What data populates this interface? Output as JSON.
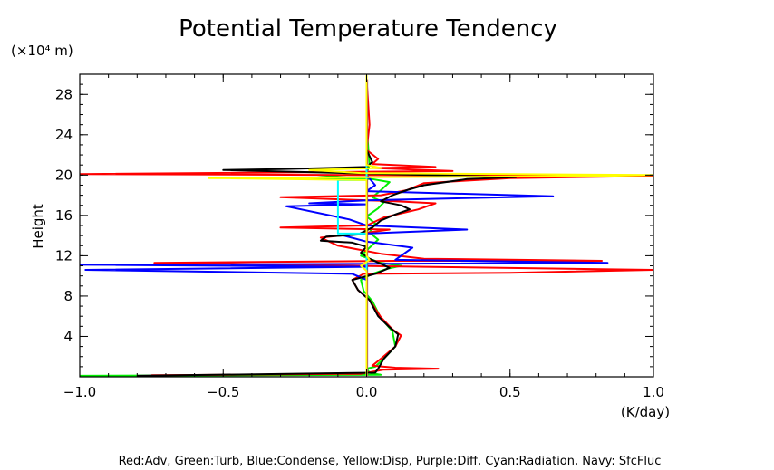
{
  "chart_data": {
    "type": "line",
    "title": "Potential Temperature Tendency",
    "ylabel": "Height",
    "yunit": "(×10⁴ m)",
    "xunit": "(K/day)",
    "legend_text": "Red:Adv, Green:Turb, Blue:Condense, Yellow:Disp, Purple:Diff, Cyan:Radiation, Navy: SfcFluc",
    "xlim": [
      -1.0,
      1.0
    ],
    "ylim": [
      0,
      30
    ],
    "x_ticks": [
      {
        "v": -1.0,
        "label": "−1.0"
      },
      {
        "v": -0.5,
        "label": "−0.5"
      },
      {
        "v": 0.0,
        "label": "0.0"
      },
      {
        "v": 0.5,
        "label": "0.5"
      },
      {
        "v": 1.0,
        "label": "1.0"
      }
    ],
    "y_ticks": [
      {
        "v": 4,
        "label": "4"
      },
      {
        "v": 8,
        "label": "8"
      },
      {
        "v": 12,
        "label": "12"
      },
      {
        "v": 16,
        "label": "16"
      },
      {
        "v": 20,
        "label": "20"
      },
      {
        "v": 24,
        "label": "24"
      },
      {
        "v": 28,
        "label": "28"
      }
    ],
    "grid": false,
    "series": [
      {
        "key": "turb",
        "color": "#00ee00",
        "points": [
          [
            -1.0,
            0.1
          ],
          [
            0.05,
            0.2
          ],
          [
            0.01,
            0.4
          ],
          [
            0.0,
            0.8
          ],
          [
            0.03,
            1.0
          ],
          [
            0.06,
            1.8
          ],
          [
            0.1,
            3
          ],
          [
            0.09,
            4.5
          ],
          [
            0.05,
            5.8
          ],
          [
            0.02,
            7.5
          ],
          [
            -0.01,
            8.5
          ],
          [
            -0.02,
            9.6
          ],
          [
            0.02,
            10.2
          ],
          [
            0.07,
            10.7
          ],
          [
            0.12,
            11.0
          ],
          [
            0.05,
            11.3
          ],
          [
            -0.02,
            12.0
          ],
          [
            0.01,
            12.8
          ],
          [
            0.04,
            13.6
          ],
          [
            0.01,
            14.3
          ],
          [
            0.03,
            15.2
          ],
          [
            0.0,
            15.9
          ],
          [
            0.04,
            16.7
          ],
          [
            0.06,
            17.3
          ],
          [
            0.02,
            17.8
          ],
          [
            0.05,
            18.5
          ],
          [
            0.08,
            19.3
          ],
          [
            0.02,
            19.6
          ],
          [
            -0.2,
            19.7
          ],
          [
            0.0,
            20.2
          ],
          [
            0.01,
            21
          ],
          [
            0.0,
            25
          ],
          [
            0.0,
            29.5
          ]
        ]
      },
      {
        "key": "adv",
        "color": "#ff0000",
        "points": [
          [
            -0.75,
            0.15
          ],
          [
            -0.02,
            0.3
          ],
          [
            0.06,
            0.7
          ],
          [
            0.25,
            0.8
          ],
          [
            0.1,
            0.9
          ],
          [
            0.02,
            1.1
          ],
          [
            0.05,
            1.8
          ],
          [
            0.1,
            3
          ],
          [
            0.12,
            4.1
          ],
          [
            0.09,
            4.7
          ],
          [
            0.05,
            5.9
          ],
          [
            0.01,
            7.6
          ],
          [
            -0.03,
            8.6
          ],
          [
            -0.05,
            9.6
          ],
          [
            -0.01,
            10.2
          ],
          [
            0.5,
            10.3
          ],
          [
            1.0,
            10.6
          ],
          [
            0.2,
            10.9
          ],
          [
            -0.74,
            11.3
          ],
          [
            0.1,
            11.5
          ],
          [
            0.82,
            11.5
          ],
          [
            0.2,
            11.7
          ],
          [
            0.05,
            12.2
          ],
          [
            -0.1,
            13.0
          ],
          [
            -0.16,
            13.8
          ],
          [
            -0.02,
            14.2
          ],
          [
            0.08,
            14.6
          ],
          [
            -0.3,
            14.8
          ],
          [
            0.0,
            15.0
          ],
          [
            0.06,
            15.8
          ],
          [
            0.18,
            16.6
          ],
          [
            0.24,
            17.2
          ],
          [
            0.1,
            17.4
          ],
          [
            -0.3,
            17.8
          ],
          [
            0.05,
            18.0
          ],
          [
            0.14,
            18.5
          ],
          [
            0.2,
            19.2
          ],
          [
            0.5,
            19.7
          ],
          [
            1.0,
            19.9
          ],
          [
            -1.0,
            20.1
          ],
          [
            0.3,
            20.4
          ],
          [
            0.02,
            20.7
          ],
          [
            0.24,
            20.8
          ],
          [
            0.02,
            21.1
          ],
          [
            0.04,
            21.6
          ],
          [
            0.0,
            22.5
          ],
          [
            0.01,
            25
          ],
          [
            0.0,
            29.5
          ]
        ]
      },
      {
        "key": "condense",
        "color": "#0000ff",
        "points": [
          [
            0.0,
            0.1
          ],
          [
            0.0,
            9.6
          ],
          [
            -0.05,
            10.2
          ],
          [
            -0.98,
            10.6
          ],
          [
            0.0,
            10.9
          ],
          [
            -1.0,
            11.1
          ],
          [
            0.05,
            11.2
          ],
          [
            0.84,
            11.3
          ],
          [
            0.1,
            11.6
          ],
          [
            0.16,
            12.8
          ],
          [
            0.0,
            13.4
          ],
          [
            -0.08,
            14.0
          ],
          [
            0.0,
            14.2
          ],
          [
            0.35,
            14.6
          ],
          [
            0.0,
            15.0
          ],
          [
            -0.06,
            15.6
          ],
          [
            -0.28,
            16.9
          ],
          [
            0.0,
            17.1
          ],
          [
            -0.2,
            17.2
          ],
          [
            0.0,
            17.5
          ],
          [
            0.65,
            17.9
          ],
          [
            0.0,
            18.4
          ],
          [
            0.03,
            19.0
          ],
          [
            0.0,
            20.0
          ],
          [
            0.0,
            29.5
          ]
        ]
      },
      {
        "key": "sfcfluc",
        "color": "#000080",
        "points": [
          [
            0.0,
            0.1
          ],
          [
            0.0,
            29.5
          ]
        ]
      },
      {
        "key": "diff",
        "color": "#800080",
        "points": [
          [
            0.002,
            0.1
          ],
          [
            0.002,
            29.5
          ]
        ]
      },
      {
        "key": "total",
        "color": "#000000",
        "points": [
          [
            -0.8,
            0.1
          ],
          [
            0.03,
            0.4
          ],
          [
            0.04,
            0.8
          ],
          [
            0.06,
            1.8
          ],
          [
            0.1,
            3
          ],
          [
            0.11,
            4.2
          ],
          [
            0.08,
            4.9
          ],
          [
            0.04,
            6
          ],
          [
            0.01,
            7.6
          ],
          [
            -0.03,
            8.6
          ],
          [
            -0.05,
            9.6
          ],
          [
            0.03,
            10.2
          ],
          [
            0.08,
            10.8
          ],
          [
            0.05,
            11.2
          ],
          [
            0.01,
            11.7
          ],
          [
            -0.02,
            12.3
          ],
          [
            0.0,
            12.9
          ],
          [
            -0.05,
            13.3
          ],
          [
            -0.16,
            13.5
          ],
          [
            -0.14,
            13.9
          ],
          [
            -0.03,
            14.1
          ],
          [
            0.02,
            14.8
          ],
          [
            0.05,
            15.5
          ],
          [
            0.1,
            16.1
          ],
          [
            0.15,
            16.6
          ],
          [
            0.12,
            17.0
          ],
          [
            0.05,
            17.4
          ],
          [
            0.09,
            18.0
          ],
          [
            0.14,
            18.5
          ],
          [
            0.2,
            19.0
          ],
          [
            0.35,
            19.6
          ],
          [
            0.52,
            19.8
          ],
          [
            -0.5,
            20.5
          ],
          [
            -0.3,
            20.6
          ],
          [
            0.0,
            20.8
          ],
          [
            0.02,
            21.3
          ],
          [
            0.0,
            22.5
          ],
          [
            0.0,
            29.5
          ]
        ]
      },
      {
        "key": "radiation",
        "color": "#00ffff",
        "points": [
          [
            0.0,
            0.5
          ],
          [
            0.0,
            14.2
          ],
          [
            -0.1,
            14.2
          ],
          [
            -0.1,
            19.5
          ],
          [
            0.0,
            19.5
          ],
          [
            0.0,
            29.5
          ]
        ]
      },
      {
        "key": "disp",
        "color": "#ffff00",
        "points": [
          [
            0.0,
            0.1
          ],
          [
            0.0,
            10.5
          ],
          [
            -0.02,
            11.0
          ],
          [
            0.01,
            11.6
          ],
          [
            0.0,
            12.0
          ],
          [
            0.0,
            19.5
          ],
          [
            -0.55,
            19.7
          ],
          [
            0.8,
            19.9
          ],
          [
            1.0,
            20.0
          ],
          [
            -0.02,
            20.2
          ],
          [
            -0.2,
            20.5
          ],
          [
            0.05,
            20.7
          ],
          [
            0.0,
            21.0
          ],
          [
            0.0,
            29.9
          ]
        ]
      }
    ]
  }
}
